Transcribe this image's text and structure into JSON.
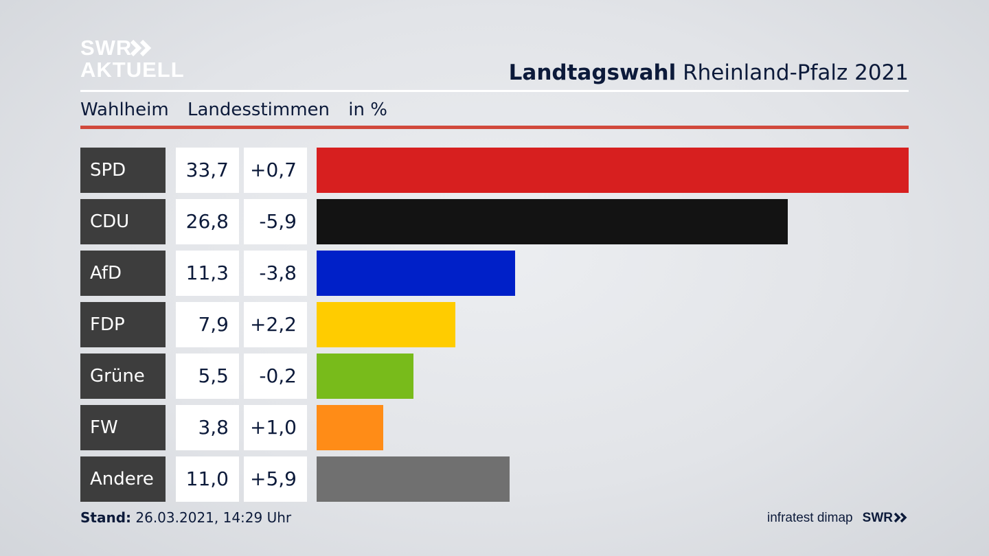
{
  "brand": {
    "line1": "SWR",
    "line2": "AKTUELL",
    "arrows_icon": "double-chevron-right-icon"
  },
  "header": {
    "title_bold": "Landtagswahl",
    "title_rest": "Rheinland-Pfalz 2021"
  },
  "subheader": {
    "place": "Wahlheim",
    "vote_type": "Landesstimmen",
    "unit": "in %"
  },
  "colors": {
    "accent_rule": "#d1493c",
    "label_box": "#3d3d3d",
    "text": "#0c1a3a"
  },
  "chart_data": {
    "type": "bar",
    "orientation": "horizontal",
    "categories": [
      "SPD",
      "CDU",
      "AfD",
      "FDP",
      "Grüne",
      "FW",
      "Andere"
    ],
    "values": [
      33.7,
      26.8,
      11.3,
      7.9,
      5.5,
      3.8,
      11.0
    ],
    "value_labels": [
      "33,7",
      "26,8",
      "11,3",
      "7,9",
      "5,5",
      "3,8",
      "11,0"
    ],
    "diff_labels": [
      "+0,7",
      "-5,9",
      "-3,8",
      "+2,2",
      "-0,2",
      "+1,0",
      "+5,9"
    ],
    "diffs": [
      0.7,
      -5.9,
      -3.8,
      2.2,
      -0.2,
      1.0,
      5.9
    ],
    "colors": [
      "#d71f1f",
      "#131313",
      "#0020c8",
      "#ffcc00",
      "#78bb1b",
      "#ff8c17",
      "#707070"
    ],
    "xlim": [
      0,
      33.7
    ],
    "grid": false
  },
  "footer": {
    "stand_label": "Stand:",
    "stand_value": "26.03.2021, 14:29 Uhr",
    "source": "infratest dimap",
    "brand": "SWR"
  }
}
